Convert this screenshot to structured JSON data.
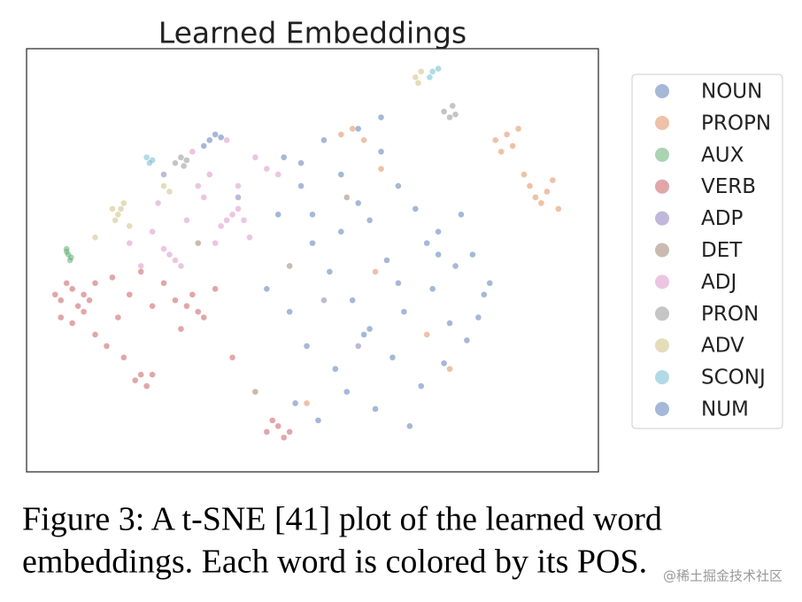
{
  "chart_data": {
    "type": "scatter",
    "title": "Learned Embeddings",
    "xlim": [
      0,
      100
    ],
    "ylim": [
      0,
      74
    ],
    "legend": "right",
    "marker_alpha": 0.5,
    "series": [
      {
        "name": "NOUN",
        "color": "#4c72b0",
        "x": [
          45,
          48,
          52,
          55,
          58,
          60,
          62,
          65,
          68,
          70,
          72,
          75,
          78,
          80,
          50,
          53,
          57,
          63,
          66,
          71,
          74,
          46,
          49,
          54,
          59,
          64,
          69,
          73,
          77,
          81,
          47,
          51,
          56,
          61,
          67,
          44,
          42,
          76,
          79,
          58,
          62,
          55,
          60,
          65
        ],
        "values": [
          55,
          50,
          58,
          52,
          47,
          44,
          56,
          50,
          46,
          40,
          42,
          36,
          38,
          31,
          40,
          35,
          30,
          37,
          28,
          32,
          26,
          28,
          22,
          18,
          24,
          20,
          15,
          19,
          23,
          33,
          12,
          9,
          14,
          11,
          8,
          45,
          32,
          45,
          27,
          60,
          62,
          42,
          25,
          33
        ]
      },
      {
        "name": "PROPN",
        "color": "#dd8452",
        "x": [
          82,
          84,
          85,
          83,
          86,
          88,
          89,
          91,
          90,
          92,
          87,
          93,
          57,
          55,
          59,
          62,
          70,
          61,
          74,
          49
        ],
        "values": [
          58,
          59,
          57,
          56,
          60,
          50,
          48,
          49,
          47,
          51,
          52,
          46,
          60,
          59,
          58,
          53,
          24,
          35,
          18,
          12
        ]
      },
      {
        "name": "AUX",
        "color": "#55a868",
        "x": [
          7,
          7.3,
          7.6,
          7,
          7.8
        ],
        "values": [
          39,
          38,
          37,
          38.5,
          37.5
        ]
      },
      {
        "name": "VERB",
        "color": "#c44e52",
        "x": [
          5,
          6,
          7,
          8,
          9,
          10,
          11,
          12,
          6,
          8,
          10,
          12,
          14,
          16,
          18,
          20,
          22,
          24,
          26,
          28,
          30,
          27,
          29,
          31,
          44,
          42,
          45,
          43,
          46,
          20,
          19,
          21,
          22,
          15,
          17,
          33,
          36
        ],
        "values": [
          31,
          30,
          33,
          32,
          29,
          31,
          30,
          33,
          27,
          26,
          28,
          24,
          22,
          27,
          31,
          35,
          29,
          33,
          30,
          29,
          28,
          25,
          31,
          27,
          8,
          7,
          6,
          9,
          7,
          17,
          16,
          15,
          17,
          34,
          20,
          32,
          20
        ]
      },
      {
        "name": "ADP",
        "color": "#8172b3",
        "x": [
          24,
          37,
          52,
          58
        ],
        "values": [
          52,
          48,
          30,
          22
        ]
      },
      {
        "name": "DET",
        "color": "#937860",
        "x": [
          30,
          46,
          40,
          56
        ],
        "values": [
          40,
          36,
          14,
          48
        ]
      },
      {
        "name": "ADJ",
        "color": "#da8bc3",
        "x": [
          36,
          35,
          37,
          38,
          34,
          25,
          26,
          24,
          27,
          30,
          32,
          40,
          42,
          28,
          22,
          23,
          33,
          39,
          29,
          31,
          44,
          20,
          18,
          37,
          35
        ],
        "values": [
          45,
          44,
          46,
          44,
          43,
          38,
          37,
          39,
          36,
          50,
          52,
          55,
          53,
          44,
          42,
          47,
          40,
          41,
          56,
          48,
          52,
          36,
          40,
          50,
          58
        ]
      },
      {
        "name": "PRON",
        "color": "#8c8c8c",
        "x": [
          26,
          27,
          28,
          27.5,
          73,
          74,
          75,
          74.5
        ],
        "values": [
          54,
          55,
          54.5,
          53.5,
          63,
          62,
          62.5,
          64
        ]
      },
      {
        "name": "ADV",
        "color": "#ccb974",
        "x": [
          15,
          16,
          17,
          15.5,
          16.5,
          18,
          68,
          68.5,
          69,
          24,
          12,
          25
        ],
        "values": [
          46,
          45,
          47,
          44,
          46,
          43,
          69,
          68,
          70,
          50,
          41,
          49
        ]
      },
      {
        "name": "SCONJ",
        "color": "#64b5cd",
        "x": [
          21,
          22,
          21.5,
          71,
          72,
          70.5
        ],
        "values": [
          55,
          54.5,
          54,
          70,
          70.5,
          69
        ]
      },
      {
        "name": "NUM",
        "color": "#4c72b0",
        "x": [
          32,
          33,
          34,
          31,
          48,
          72,
          50
        ],
        "values": [
          58,
          59,
          58.5,
          57,
          54,
          38,
          45
        ]
      }
    ]
  },
  "caption": [
    "Figure 3:  A t-SNE [41] plot of the learned word",
    "embeddings. Each word is colored by its POS."
  ],
  "watermark": "@稀土掘金技术社区"
}
